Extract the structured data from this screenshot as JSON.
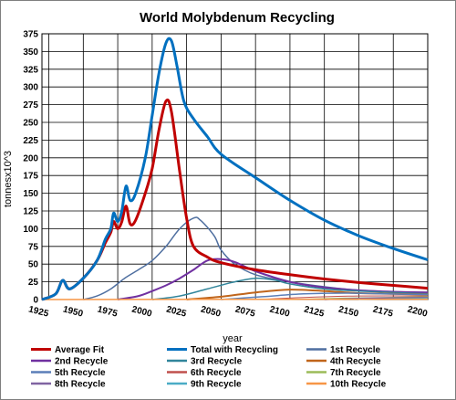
{
  "chart_data": {
    "type": "line",
    "title": "World Molybdenum Recycling",
    "xlabel": "year",
    "ylabel": "tonnesx10^3",
    "xlim": [
      1920,
      2200
    ],
    "ylim": [
      0,
      375
    ],
    "x_ticks": [
      1925,
      1950,
      1975,
      2000,
      2025,
      2050,
      2075,
      2100,
      2125,
      2150,
      2175,
      2200
    ],
    "y_ticks": [
      0,
      25,
      50,
      75,
      100,
      125,
      150,
      175,
      200,
      225,
      250,
      275,
      300,
      325,
      350,
      375
    ],
    "grid": true,
    "legend_position": "bottom",
    "series": [
      {
        "name": "Average Fit",
        "color": "#c00000",
        "width": 3,
        "points": [
          [
            1920,
            0
          ],
          [
            1930,
            8
          ],
          [
            1935,
            27
          ],
          [
            1940,
            15
          ],
          [
            1950,
            30
          ],
          [
            1960,
            55
          ],
          [
            1966,
            80
          ],
          [
            1970,
            95
          ],
          [
            1972,
            110
          ],
          [
            1975,
            100
          ],
          [
            1978,
            110
          ],
          [
            1981,
            132
          ],
          [
            1984,
            107
          ],
          [
            1988,
            112
          ],
          [
            1995,
            150
          ],
          [
            2000,
            185
          ],
          [
            2005,
            240
          ],
          [
            2010,
            280
          ],
          [
            2014,
            265
          ],
          [
            2020,
            180
          ],
          [
            2025,
            115
          ],
          [
            2030,
            75
          ],
          [
            2040,
            60
          ],
          [
            2050,
            52
          ],
          [
            2075,
            42
          ],
          [
            2100,
            35
          ],
          [
            2125,
            29
          ],
          [
            2150,
            24
          ],
          [
            2175,
            20
          ],
          [
            2200,
            16
          ]
        ]
      },
      {
        "name": "Total with Recycling",
        "color": "#0070c0",
        "width": 3,
        "points": [
          [
            1920,
            0
          ],
          [
            1930,
            8
          ],
          [
            1935,
            27
          ],
          [
            1940,
            15
          ],
          [
            1950,
            30
          ],
          [
            1960,
            55
          ],
          [
            1966,
            85
          ],
          [
            1970,
            100
          ],
          [
            1972,
            122
          ],
          [
            1975,
            110
          ],
          [
            1978,
            125
          ],
          [
            1981,
            160
          ],
          [
            1984,
            140
          ],
          [
            1988,
            150
          ],
          [
            1995,
            200
          ],
          [
            2000,
            260
          ],
          [
            2005,
            320
          ],
          [
            2010,
            362
          ],
          [
            2014,
            365
          ],
          [
            2018,
            330
          ],
          [
            2023,
            280
          ],
          [
            2030,
            255
          ],
          [
            2040,
            230
          ],
          [
            2050,
            205
          ],
          [
            2075,
            172
          ],
          [
            2100,
            140
          ],
          [
            2125,
            112
          ],
          [
            2150,
            90
          ],
          [
            2175,
            72
          ],
          [
            2200,
            56
          ]
        ]
      },
      {
        "name": "1st Recycle",
        "color": "#4f6fa0",
        "width": 1.5,
        "points": [
          [
            1950,
            0
          ],
          [
            1960,
            5
          ],
          [
            1970,
            15
          ],
          [
            1980,
            30
          ],
          [
            1990,
            42
          ],
          [
            2000,
            55
          ],
          [
            2010,
            75
          ],
          [
            2020,
            100
          ],
          [
            2030,
            115
          ],
          [
            2035,
            112
          ],
          [
            2045,
            90
          ],
          [
            2050,
            70
          ],
          [
            2060,
            50
          ],
          [
            2075,
            35
          ],
          [
            2100,
            25
          ],
          [
            2125,
            18
          ],
          [
            2150,
            13
          ],
          [
            2175,
            10
          ],
          [
            2200,
            8
          ]
        ]
      },
      {
        "name": "2nd Recycle",
        "color": "#7030a0",
        "width": 2,
        "points": [
          [
            1975,
            0
          ],
          [
            1990,
            5
          ],
          [
            2000,
            12
          ],
          [
            2010,
            20
          ],
          [
            2020,
            30
          ],
          [
            2030,
            42
          ],
          [
            2040,
            55
          ],
          [
            2050,
            57
          ],
          [
            2060,
            53
          ],
          [
            2075,
            40
          ],
          [
            2100,
            25
          ],
          [
            2125,
            17
          ],
          [
            2150,
            13
          ],
          [
            2175,
            11
          ],
          [
            2200,
            10
          ]
        ]
      },
      {
        "name": "3rd Recycle",
        "color": "#31859b",
        "width": 1.5,
        "points": [
          [
            2000,
            0
          ],
          [
            2020,
            5
          ],
          [
            2040,
            15
          ],
          [
            2060,
            25
          ],
          [
            2075,
            30
          ],
          [
            2090,
            27
          ],
          [
            2100,
            22
          ],
          [
            2125,
            15
          ],
          [
            2150,
            12
          ],
          [
            2175,
            10
          ],
          [
            2200,
            8
          ]
        ]
      },
      {
        "name": "4th Recycle",
        "color": "#c0651b",
        "width": 2,
        "points": [
          [
            2025,
            0
          ],
          [
            2050,
            4
          ],
          [
            2075,
            10
          ],
          [
            2100,
            14
          ],
          [
            2125,
            12
          ],
          [
            2150,
            9
          ],
          [
            2175,
            8
          ],
          [
            2200,
            7
          ]
        ]
      },
      {
        "name": "5th Recycle",
        "color": "#5b7fb8",
        "width": 1.5,
        "points": [
          [
            2050,
            0
          ],
          [
            2080,
            4
          ],
          [
            2110,
            8
          ],
          [
            2140,
            9
          ],
          [
            2170,
            8
          ],
          [
            2200,
            7
          ]
        ]
      },
      {
        "name": "6th Recycle",
        "color": "#c0504d",
        "width": 1,
        "points": [
          [
            2075,
            0
          ],
          [
            2110,
            3
          ],
          [
            2150,
            5
          ],
          [
            2200,
            5
          ]
        ]
      },
      {
        "name": "7th Recycle",
        "color": "#9bbb59",
        "width": 1,
        "points": [
          [
            2100,
            0
          ],
          [
            2140,
            2
          ],
          [
            2200,
            4
          ]
        ]
      },
      {
        "name": "8th Recycle",
        "color": "#8064a2",
        "width": 1.5,
        "points": [
          [
            2125,
            0
          ],
          [
            2160,
            2
          ],
          [
            2200,
            3
          ]
        ]
      },
      {
        "name": "9th Recycle",
        "color": "#4bacc6",
        "width": 1,
        "points": [
          [
            2150,
            0
          ],
          [
            2200,
            2
          ]
        ]
      },
      {
        "name": "10th Recycle",
        "color": "#f79646",
        "width": 1.5,
        "points": [
          [
            1920,
            0
          ],
          [
            2200,
            0.5
          ]
        ]
      }
    ]
  }
}
